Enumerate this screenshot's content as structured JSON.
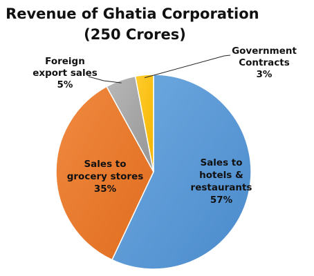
{
  "chart_data": {
    "type": "pie",
    "title_lines": [
      "Revenue of Ghatia Corporation",
      "(250 Crores)"
    ],
    "slices": [
      {
        "name": "Sales to hotels & restaurants",
        "label_lines": [
          "Sales to",
          "hotels &",
          "restaurants",
          "57%"
        ],
        "value": 57,
        "color": "#5B9BD5"
      },
      {
        "name": "Sales to grocery stores",
        "label_lines": [
          "Sales to",
          "grocery stores",
          "35%"
        ],
        "value": 35,
        "color": "#ED7D31"
      },
      {
        "name": "Foreign export sales",
        "label_lines": [
          "Foreign",
          "export sales",
          "5%"
        ],
        "value": 5,
        "color": "#A5A5A5"
      },
      {
        "name": "Government Contracts",
        "label_lines": [
          "Government",
          "Contracts",
          "3%"
        ],
        "value": 3,
        "color": "#FFC000"
      }
    ],
    "start_angle_deg": 0,
    "direction": "clockwise"
  }
}
